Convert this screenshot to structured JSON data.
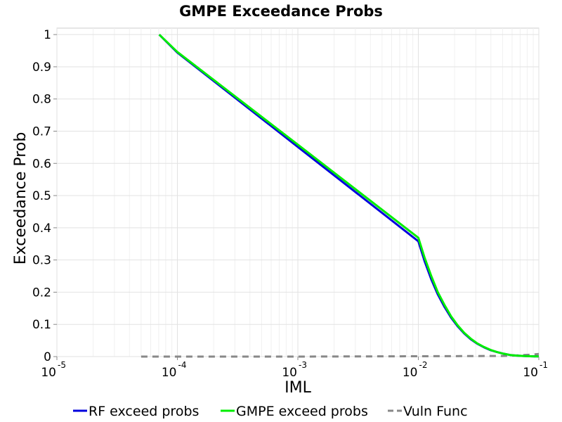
{
  "chart_data": {
    "type": "line",
    "title": "GMPE Exceedance Probs",
    "xlabel": "IML",
    "ylabel": "Exceedance Prob",
    "x_scale": "log",
    "xlim": [
      1e-05,
      0.1
    ],
    "ylim": [
      0,
      1.02
    ],
    "grid": true,
    "legend_position": "bottom",
    "x_ticks": [
      {
        "base": "10",
        "exp": "-5",
        "value": 1e-05
      },
      {
        "base": "10",
        "exp": "-4",
        "value": 0.0001
      },
      {
        "base": "10",
        "exp": "-3",
        "value": 0.001
      },
      {
        "base": "10",
        "exp": "-2",
        "value": 0.01
      },
      {
        "base": "10",
        "exp": "-1",
        "value": 0.1
      }
    ],
    "y_ticks": [
      "0",
      "0.1",
      "0.2",
      "0.3",
      "0.4",
      "0.5",
      "0.6",
      "0.7",
      "0.8",
      "0.9",
      "1"
    ],
    "series": [
      {
        "name": "RF exceed probs",
        "color": "#0000dd",
        "style": "solid",
        "x": [
          7.07e-05,
          0.0001,
          0.001,
          0.01,
          0.0113,
          0.0128,
          0.0145,
          0.0165,
          0.0187,
          0.0212,
          0.024,
          0.0272,
          0.0308,
          0.035,
          0.0396,
          0.045,
          0.051,
          0.0577,
          0.0654,
          0.0742,
          0.0841,
          0.1
        ],
        "y": [
          1.0,
          0.944,
          0.651,
          0.358,
          0.295,
          0.24,
          0.193,
          0.154,
          0.121,
          0.094,
          0.072,
          0.054,
          0.04,
          0.029,
          0.02,
          0.014,
          0.009,
          0.005,
          0.003,
          0.002,
          0.001,
          0.0005
        ]
      },
      {
        "name": "GMPE exceed probs",
        "color": "#00ee00",
        "style": "solid",
        "x": [
          7.07e-05,
          0.0001,
          0.001,
          0.01,
          0.0113,
          0.0128,
          0.0145,
          0.0165,
          0.0187,
          0.0212,
          0.024,
          0.0272,
          0.0308,
          0.035,
          0.0396,
          0.045,
          0.051,
          0.0577,
          0.0654,
          0.0742,
          0.0841,
          0.1
        ],
        "y": [
          1.0,
          0.946,
          0.658,
          0.369,
          0.306,
          0.25,
          0.2,
          0.16,
          0.125,
          0.097,
          0.074,
          0.056,
          0.041,
          0.03,
          0.021,
          0.014,
          0.009,
          0.005,
          0.003,
          0.002,
          0.001,
          0.0005
        ]
      },
      {
        "name": "Vuln Func",
        "color": "#888888",
        "style": "dashed",
        "x": [
          5e-05,
          0.0001,
          0.001,
          0.01,
          0.05,
          0.07,
          0.085,
          0.1
        ],
        "y": [
          0.0,
          0.0,
          0.0,
          0.001,
          0.002,
          0.004,
          0.006,
          0.008
        ]
      }
    ]
  }
}
